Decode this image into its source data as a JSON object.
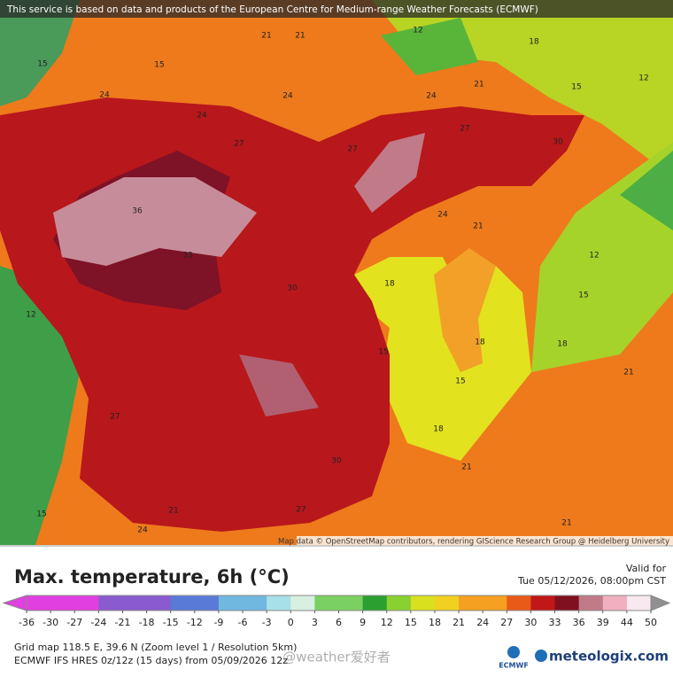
{
  "banner": "This service is based on data and products of the European Centre for Medium-range Weather Forecasts (ECMWF)",
  "attribution": "Map data © OpenStreetMap contributors, rendering GIScience Research Group @ Heidelberg University",
  "map": {
    "labels": [
      "21",
      "21",
      "12",
      "18",
      "15",
      "12",
      "15",
      "15",
      "24",
      "24",
      "24",
      "24",
      "21",
      "27",
      "27",
      "27",
      "30",
      "36",
      "33",
      "30",
      "24",
      "21",
      "12",
      "15",
      "18",
      "15",
      "15",
      "18",
      "18",
      "21",
      "18",
      "21",
      "21",
      "27",
      "30",
      "27",
      "12",
      "15",
      "21",
      "24"
    ]
  },
  "title": "Max. temperature, 6h (°C)",
  "valid_label": "Valid for",
  "valid_time": "Tue 05/12/2026, 08:00pm CST",
  "colorbar": {
    "ticks": [
      -36,
      -30,
      -27,
      -24,
      -21,
      -18,
      -15,
      -12,
      -9,
      -6,
      -3,
      0,
      3,
      6,
      9,
      12,
      15,
      18,
      21,
      24,
      27,
      30,
      33,
      36,
      39,
      44,
      50
    ]
  },
  "grid_info": "Grid map 118.5 E, 39.6 N (Zoom level 1 / Resolution 5km)",
  "model_info": "ECMWF IFS HRES 0z/12z (15 days) from 05/09/2026 12z",
  "watermark": "@weather爱好者",
  "ecmwf_logo": "ECMWF",
  "brand": "meteologix.com"
}
